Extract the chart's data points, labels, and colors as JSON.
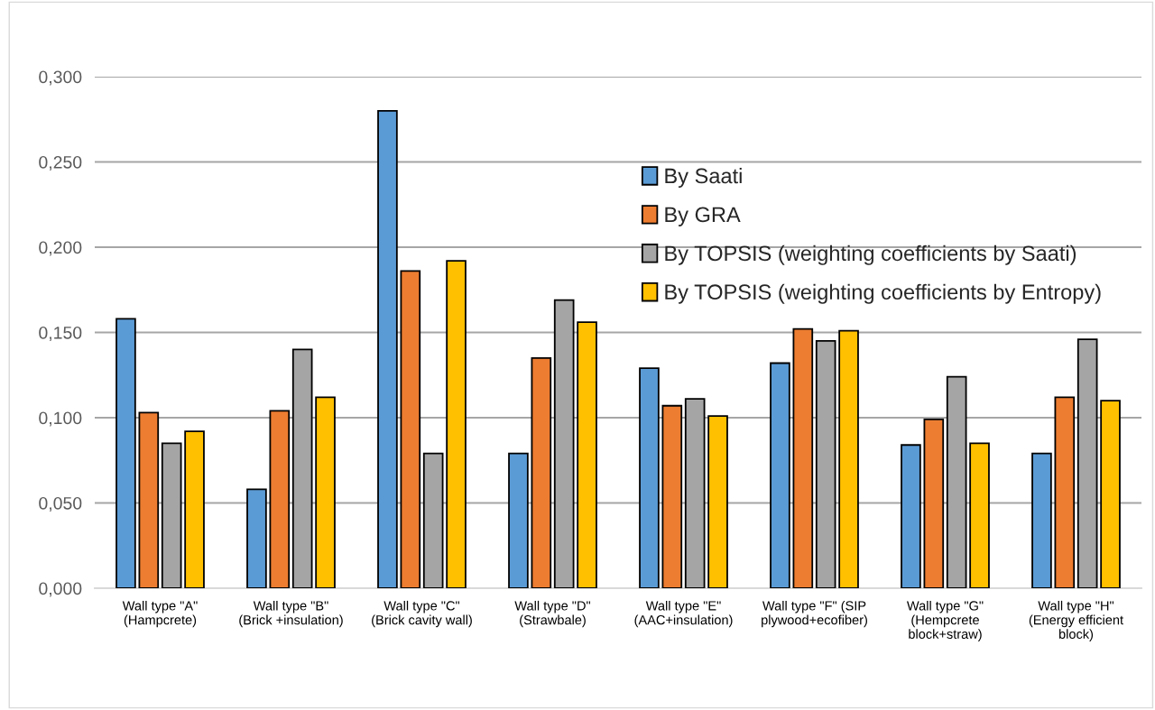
{
  "chart_data": {
    "type": "bar",
    "categories": [
      "Wall type \"A\"\n(Hampcrete)",
      "Wall type \"B\"\n(Brick +insulation)",
      "Wall type \"C\"\n(Brick cavity wall)",
      "Wall type \"D\"\n(Strawbale)",
      "Wall type \"E\"\n(AAC+insulation)",
      "Wall type \"F\" (SIP\nplywood+ecofiber)",
      "Wall type \"G\"\n(Hempcrete\nblock+straw)",
      "Wall type \"H\"\n(Energy efficient\nblock)"
    ],
    "series": [
      {
        "name": "By Saati",
        "color": "#5b9bd5",
        "values": [
          0.158,
          0.058,
          0.28,
          0.079,
          0.129,
          0.132,
          0.084,
          0.079
        ]
      },
      {
        "name": "By GRA",
        "color": "#ed7d31",
        "values": [
          0.103,
          0.104,
          0.186,
          0.135,
          0.107,
          0.152,
          0.099,
          0.112
        ]
      },
      {
        "name": "By TOPSIS (weighting coefficients by Saati)",
        "color": "#a5a5a5",
        "values": [
          0.085,
          0.14,
          0.079,
          0.169,
          0.111,
          0.145,
          0.124,
          0.146
        ]
      },
      {
        "name": "By TOPSIS (weighting coefficients by Entropy)",
        "color": "#ffc000",
        "values": [
          0.092,
          0.112,
          0.192,
          0.156,
          0.101,
          0.151,
          0.085,
          0.11
        ]
      }
    ],
    "ylim": [
      0,
      0.3
    ],
    "yticks": [
      {
        "value": 0,
        "label": "0,000"
      },
      {
        "value": 0.05,
        "label": "0,050"
      },
      {
        "value": 0.1,
        "label": "0,100"
      },
      {
        "value": 0.15,
        "label": "0,150"
      },
      {
        "value": 0.2,
        "label": "0,200"
      },
      {
        "value": 0.25,
        "label": "0,250"
      },
      {
        "value": 0.3,
        "label": "0,300"
      }
    ],
    "grid": "y",
    "legend": "top right"
  }
}
